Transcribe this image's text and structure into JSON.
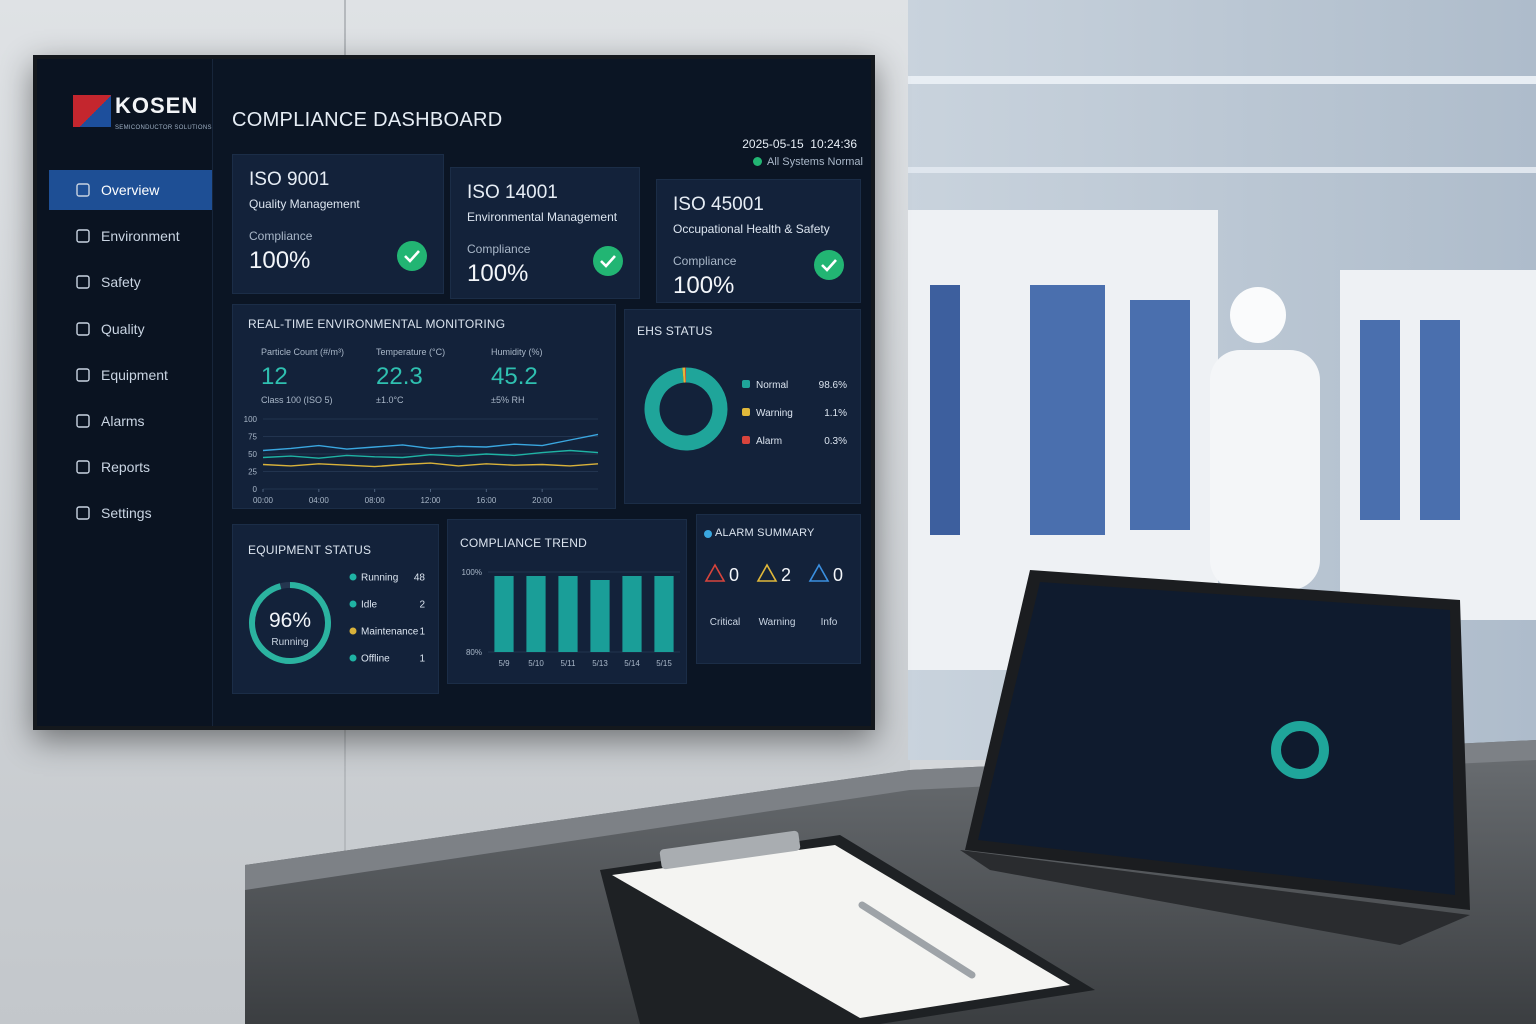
{
  "brand": {
    "name": "KOSEN",
    "tagline": "SEMICONDUCTOR SOLUTIONS"
  },
  "nav": [
    "Overview",
    "Environment",
    "Safety",
    "Quality",
    "Equipment",
    "Alarms",
    "Reports",
    "Settings"
  ],
  "header": {
    "title": "COMPLIANCE DASHBOARD",
    "datetime": "2025-05-15  10:24:36",
    "status": "All Systems Normal"
  },
  "cards": [
    {
      "code": "ISO 9001",
      "name": "Quality Management",
      "label": "Compliance",
      "value": "100%"
    },
    {
      "code": "ISO 14001",
      "name": "Environmental Management",
      "label": "Compliance",
      "value": "100%"
    },
    {
      "code": "ISO 45001",
      "name": "Occupational Health & Safety",
      "label": "Compliance",
      "value": "100%"
    }
  ],
  "environment": {
    "title": "REAL-TIME ENVIRONMENTAL MONITORING",
    "metrics": [
      {
        "label": "Particle Count (#/m³)",
        "value": "12",
        "note": "Class 100 (ISO 5)"
      },
      {
        "label": "Temperature (°C)",
        "value": "22.3",
        "note": "±1.0°C"
      },
      {
        "label": "Humidity (%)",
        "value": "45.2",
        "note": "±5% RH"
      }
    ],
    "chart": {
      "type": "line",
      "x": [
        0,
        2,
        4,
        6,
        8,
        10,
        12,
        14,
        16,
        18,
        20,
        22,
        24
      ],
      "xlim": [
        0,
        24
      ],
      "xticks": [
        {
          "value": 0,
          "label": "00:00"
        },
        {
          "value": 4,
          "label": "04:00"
        },
        {
          "value": 8,
          "label": "08:00"
        },
        {
          "value": 12,
          "label": "12:00"
        },
        {
          "value": 16,
          "label": "16:00"
        },
        {
          "value": 20,
          "label": "20:00"
        }
      ],
      "ylim": [
        0,
        100
      ],
      "yticks": [
        0,
        25,
        50,
        75,
        100
      ],
      "series": [
        {
          "color": "#3aa7e0",
          "values": [
            55,
            58,
            62,
            57,
            60,
            63,
            58,
            61,
            60,
            64,
            62,
            70,
            78
          ]
        },
        {
          "color": "#1fb3a4",
          "values": [
            45,
            47,
            44,
            48,
            46,
            45,
            49,
            47,
            50,
            48,
            52,
            55,
            52
          ]
        },
        {
          "color": "#d9b23a",
          "values": [
            35,
            33,
            36,
            34,
            32,
            35,
            37,
            33,
            36,
            34,
            35,
            33,
            36
          ]
        }
      ]
    }
  },
  "ehs": {
    "title": "EHS STATUS",
    "type": "pie",
    "categories": [
      "Normal",
      "Warning",
      "Alarm"
    ],
    "values": [
      98.6,
      1.1,
      0.3
    ],
    "value_labels": [
      "98.6%",
      "1.1%",
      "0.3%"
    ],
    "colors": [
      "#1fa59a",
      "#e0b83a",
      "#d8443c"
    ]
  },
  "equipment": {
    "title": "EQUIPMENT STATUS",
    "gauge": {
      "value": 96,
      "label": "96%",
      "caption": "Running"
    },
    "categories": [
      "Running",
      "Idle",
      "Maintenance",
      "Offline"
    ],
    "values": [
      "48",
      "2",
      "1",
      "1"
    ],
    "colors": [
      "#1fb3a4",
      "#1fb3a4",
      "#d9b23a",
      "#1fb3a4"
    ]
  },
  "trend": {
    "title": "COMPLIANCE TREND",
    "type": "bar",
    "categories": [
      "5/9",
      "5/10",
      "5/11",
      "5/13",
      "5/14",
      "5/15"
    ],
    "values": [
      99,
      99,
      99,
      98,
      99,
      99
    ],
    "ylim": [
      80,
      100
    ],
    "yticks": [
      {
        "value": 80,
        "label": "80%"
      },
      {
        "value": 100,
        "label": "100%"
      }
    ],
    "color": "#1a9e98"
  },
  "alarms": {
    "title": "ALARM SUMMARY",
    "categories": [
      "Critical",
      "Warning",
      "Info"
    ],
    "values": [
      "0",
      "2",
      "0"
    ],
    "colors": [
      "#d8443c",
      "#e0b83a",
      "#3a8fe0"
    ]
  }
}
